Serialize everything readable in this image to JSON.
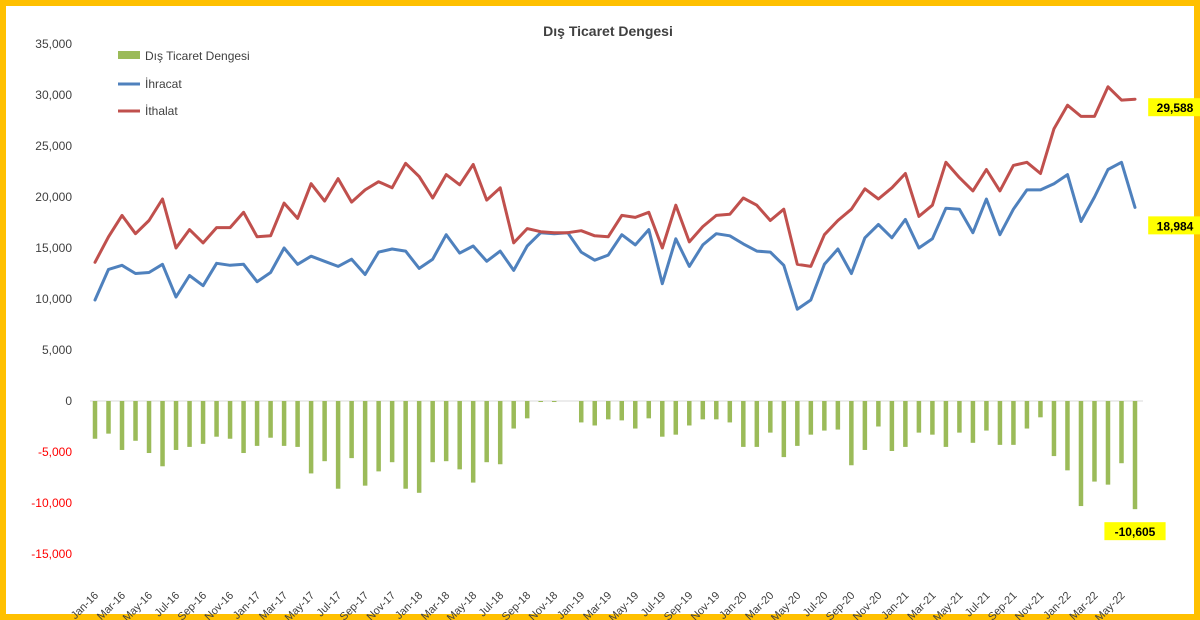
{
  "chart_data": {
    "type": "bar-line",
    "title": "Dış Ticaret Dengesi",
    "xlabel": "",
    "ylabel": "",
    "ylim": [
      -15000,
      35000
    ],
    "yticks": [
      35000,
      30000,
      25000,
      20000,
      15000,
      10000,
      5000,
      0,
      -5000,
      -10000,
      -15000
    ],
    "ytick_labels": [
      "35,000",
      "30,000",
      "25,000",
      "20,000",
      "15,000",
      "10,000",
      "5,000",
      "0",
      "-5,000",
      "-10,000",
      "-15,000"
    ],
    "grid": false,
    "legend_position": "top-left",
    "x_tick_labels": [
      "Jan-16",
      "Mar-16",
      "May-16",
      "Jul-16",
      "Sep-16",
      "Nov-16",
      "Jan-17",
      "Mar-17",
      "May-17",
      "Jul-17",
      "Sep-17",
      "Nov-17",
      "Jan-18",
      "Mar-18",
      "May-18",
      "Jul-18",
      "Sep-18",
      "Nov-18",
      "Jan-19",
      "Mar-19",
      "May-19",
      "Jul-19",
      "Sep-19",
      "Nov-19",
      "Jan-20",
      "Mar-20",
      "May-20",
      "Jul-20",
      "Sep-20",
      "Nov-20",
      "Jan-21",
      "Mar-21",
      "May-21",
      "Jul-21",
      "Sep-21",
      "Nov-21",
      "Jan-22",
      "Mar-22",
      "May-22"
    ],
    "series": [
      {
        "name": "Dış Ticaret Dengesi",
        "kind": "bar",
        "color": "#9bbb59",
        "values": [
          -3700,
          -3200,
          -4800,
          -3900,
          -5100,
          -6400,
          -4800,
          -4500,
          -4200,
          -3500,
          -3700,
          -5100,
          -4400,
          -3600,
          -4400,
          -4500,
          -7100,
          -5900,
          -8600,
          -5600,
          -8300,
          -6900,
          -6000,
          -8600,
          -9000,
          -6000,
          -5900,
          -6700,
          -8000,
          -6000,
          -6200,
          -2700,
          -1700,
          -100,
          -100,
          0,
          -2100,
          -2400,
          -1800,
          -1900,
          -2700,
          -1700,
          -3500,
          -3300,
          -2400,
          -1800,
          -1800,
          -2100,
          -4500,
          -4500,
          -3100,
          -5500,
          -4400,
          -3300,
          -2900,
          -2800,
          -6300,
          -4800,
          -2500,
          -4900,
          -4500,
          -3100,
          -3300,
          -4500,
          -3100,
          -4100,
          -2900,
          -4300,
          -4300,
          -2700,
          -1600,
          -5400,
          -6800,
          -10300,
          -7900,
          -8200,
          -6100,
          -10605
        ],
        "value_labels": {
          "77": "-10,605"
        }
      },
      {
        "name": "İhracat",
        "kind": "line",
        "color": "#4f81bd",
        "values": [
          9900,
          12900,
          13300,
          12500,
          12600,
          13400,
          10200,
          12300,
          11300,
          13500,
          13300,
          13400,
          11700,
          12600,
          15000,
          13400,
          14200,
          13700,
          13200,
          13900,
          12400,
          14600,
          14900,
          14700,
          13000,
          13900,
          16300,
          14500,
          15200,
          13700,
          14700,
          12800,
          15200,
          16500,
          16400,
          16500,
          14600,
          13800,
          14300,
          16300,
          15300,
          16800,
          11500,
          15900,
          13200,
          15300,
          16400,
          16200,
          15400,
          14700,
          14600,
          13300,
          9000,
          9900,
          13400,
          14900,
          12500,
          16000,
          17300,
          16000,
          17800,
          15000,
          15900,
          18900,
          18800,
          16500,
          19800,
          16300,
          18800,
          20700,
          20700,
          21300,
          22200,
          17600,
          20000,
          22700,
          23400,
          18984
        ],
        "value_labels": {
          "77": "18,984"
        }
      },
      {
        "name": "İthalat",
        "kind": "line",
        "color": "#c0504d",
        "values": [
          13600,
          16100,
          18200,
          16400,
          17700,
          19800,
          15000,
          16800,
          15500,
          17000,
          17000,
          18500,
          16100,
          16200,
          19400,
          17900,
          21300,
          19600,
          21800,
          19500,
          20700,
          21500,
          20900,
          23300,
          22000,
          19900,
          22200,
          21200,
          23200,
          19700,
          20900,
          15500,
          16900,
          16600,
          16500,
          16500,
          16700,
          16200,
          16100,
          18200,
          18000,
          18500,
          15000,
          19200,
          15600,
          17100,
          18200,
          18300,
          19900,
          19200,
          17700,
          18800,
          13400,
          13200,
          16300,
          17700,
          18800,
          20800,
          19800,
          20900,
          22300,
          18100,
          19200,
          23400,
          21900,
          20600,
          22700,
          20600,
          23100,
          23400,
          22300,
          26700,
          29000,
          27900,
          27900,
          30800,
          29500,
          29588
        ],
        "value_labels": {
          "77": "29,588"
        }
      }
    ]
  }
}
